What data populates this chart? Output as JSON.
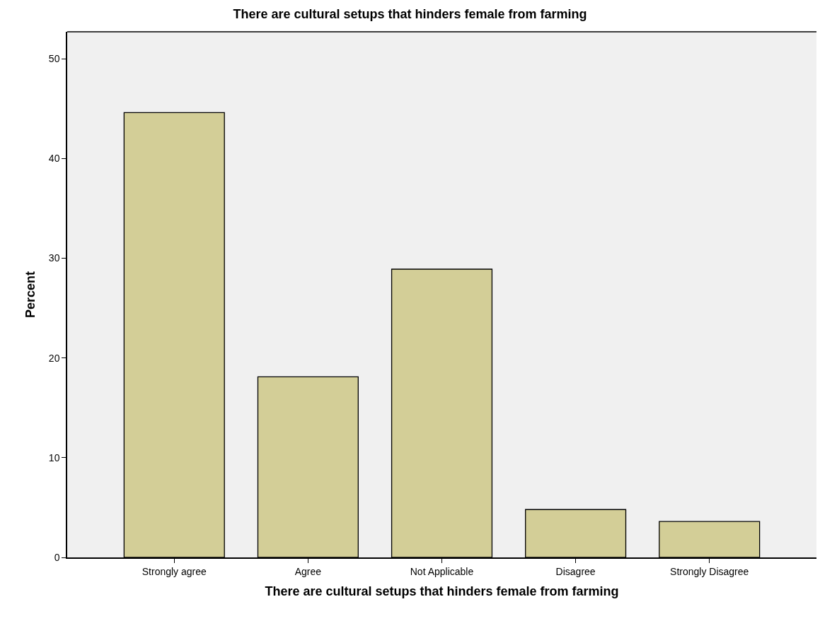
{
  "chart_data": {
    "type": "bar",
    "title": "There are cultural setups that hinders female from farming",
    "xlabel": "There are cultural setups that hinders female from farming",
    "ylabel": "Percent",
    "categories": [
      "Strongly agree",
      "Agree",
      "Not Applicable",
      "Disagree",
      "Strongly Disagree"
    ],
    "values": [
      44.6,
      18.1,
      28.9,
      4.8,
      3.6
    ],
    "color": "#d3ce97",
    "ylim": [
      0,
      52.7
    ],
    "yticks": [
      0,
      10,
      20,
      30,
      40,
      50
    ],
    "grid": false
  }
}
